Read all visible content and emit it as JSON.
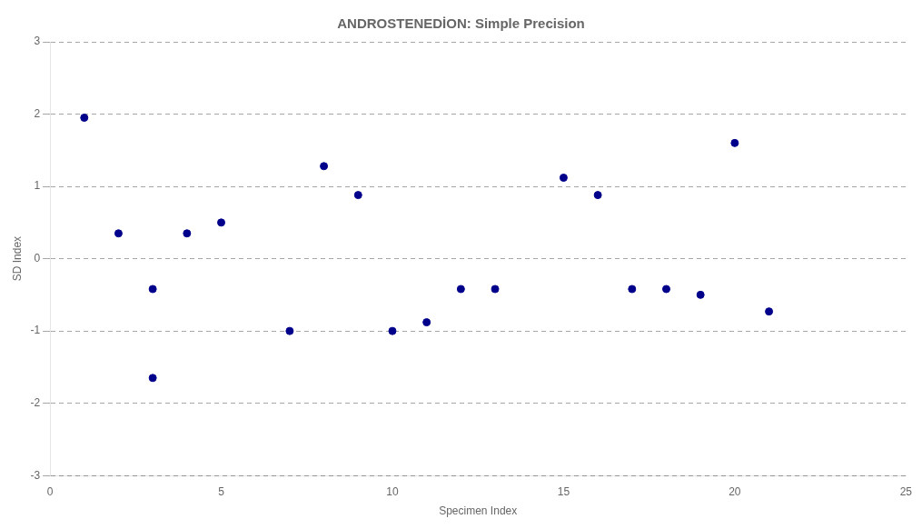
{
  "chart_data": {
    "type": "scatter",
    "title": "ANDROSTENEDİON: Simple Precision",
    "x_label": "Specimen Index",
    "y_label": "SD Index",
    "x": [
      1,
      2,
      3,
      4,
      5,
      3,
      7,
      8,
      9,
      10,
      11,
      12,
      13,
      15,
      16,
      17,
      18,
      19,
      20,
      21
    ],
    "values": [
      1.95,
      0.35,
      -0.42,
      0.35,
      0.5,
      -1.65,
      -1.0,
      1.28,
      0.88,
      -1.0,
      -0.88,
      -0.42,
      -0.42,
      1.12,
      0.88,
      -0.42,
      -0.42,
      -0.5,
      1.6,
      -0.73
    ],
    "color": "#00008B",
    "xlim": [
      0,
      25
    ],
    "xticks": [
      0,
      5,
      10,
      15,
      20,
      25
    ],
    "ylim": [
      -3,
      3
    ],
    "yticks": [
      -3,
      -2,
      -1,
      0,
      1,
      2,
      3
    ],
    "grid": "y"
  }
}
